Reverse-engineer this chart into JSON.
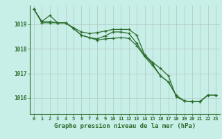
{
  "x": [
    0,
    1,
    2,
    3,
    4,
    5,
    6,
    7,
    8,
    9,
    10,
    11,
    12,
    13,
    14,
    15,
    16,
    17,
    18,
    19,
    20,
    21,
    22,
    23
  ],
  "series1": [
    1019.6,
    1019.1,
    1019.35,
    1019.05,
    1019.05,
    1018.85,
    1018.68,
    1018.62,
    1018.65,
    1018.72,
    1018.78,
    1018.78,
    1018.78,
    1018.55,
    1017.75,
    1017.45,
    1017.2,
    1016.9,
    1016.05,
    1015.88,
    1015.85,
    1015.85,
    1016.12,
    1016.12
  ],
  "series2": [
    1019.6,
    1019.1,
    1019.1,
    1019.05,
    1019.05,
    1018.82,
    1018.55,
    1018.45,
    1018.4,
    1018.52,
    1018.68,
    1018.68,
    1018.62,
    1018.22,
    1017.72,
    1017.38,
    1016.9,
    1016.65,
    1016.1,
    1015.88,
    1015.85,
    1015.85,
    1016.12,
    1016.12
  ],
  "series3": [
    1019.6,
    1019.05,
    1019.05,
    1019.05,
    1019.05,
    1018.82,
    1018.55,
    1018.45,
    1018.35,
    1018.4,
    1018.42,
    1018.45,
    1018.42,
    1018.12,
    1017.68,
    1017.32,
    1016.9,
    1016.65,
    1016.1,
    1015.88,
    1015.85,
    1015.85,
    1016.12,
    1016.12
  ],
  "line_color": "#2d6e2d",
  "bg_color": "#c8eee8",
  "grid_color": "#b0c8c0",
  "xlabel": "Graphe pression niveau de la mer (hPa)",
  "ylim": [
    1015.35,
    1019.75
  ],
  "yticks": [
    1016,
    1017,
    1018,
    1019
  ],
  "xticks": [
    0,
    1,
    2,
    3,
    4,
    5,
    6,
    7,
    8,
    9,
    10,
    11,
    12,
    13,
    14,
    15,
    16,
    17,
    18,
    19,
    20,
    21,
    22,
    23
  ],
  "marker": "+"
}
